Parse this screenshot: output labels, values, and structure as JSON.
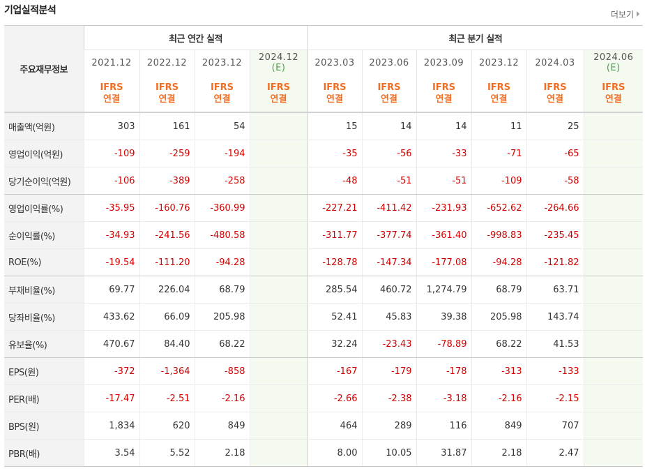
{
  "section_title": "기업실적분석",
  "more_label": "더보기",
  "table": {
    "label_header": "주요재무정보",
    "annual_group": "최근 연간 실적",
    "quarter_group": "최근 분기 실적",
    "periods": [
      {
        "date": "2021.12",
        "est": ""
      },
      {
        "date": "2022.12",
        "est": ""
      },
      {
        "date": "2023.12",
        "est": ""
      },
      {
        "date": "2024.12",
        "est": "(E)"
      },
      {
        "date": "2023.03",
        "est": ""
      },
      {
        "date": "2023.06",
        "est": ""
      },
      {
        "date": "2023.09",
        "est": ""
      },
      {
        "date": "2023.12",
        "est": ""
      },
      {
        "date": "2024.03",
        "est": ""
      },
      {
        "date": "2024.06",
        "est": "(E)"
      }
    ],
    "ifrs_label": "IFRS",
    "consol_label": "연결",
    "rows": [
      {
        "label": "매출액(억원)",
        "values": [
          "303",
          "161",
          "54",
          "",
          "15",
          "14",
          "14",
          "11",
          "25",
          ""
        ]
      },
      {
        "label": "영업이익(억원)",
        "values": [
          "-109",
          "-259",
          "-194",
          "",
          "-35",
          "-56",
          "-33",
          "-71",
          "-65",
          ""
        ]
      },
      {
        "label": "당기순이익(억원)",
        "values": [
          "-106",
          "-389",
          "-258",
          "",
          "-48",
          "-51",
          "-51",
          "-109",
          "-58",
          ""
        ]
      },
      {
        "label": "영업이익률(%)",
        "values": [
          "-35.95",
          "-160.76",
          "-360.99",
          "",
          "-227.21",
          "-411.42",
          "-231.93",
          "-652.62",
          "-264.66",
          ""
        ]
      },
      {
        "label": "순이익률(%)",
        "values": [
          "-34.93",
          "-241.56",
          "-480.58",
          "",
          "-311.77",
          "-377.74",
          "-361.40",
          "-998.83",
          "-235.45",
          ""
        ]
      },
      {
        "label": "ROE(%)",
        "values": [
          "-19.54",
          "-111.20",
          "-94.28",
          "",
          "-128.78",
          "-147.34",
          "-177.08",
          "-94.28",
          "-121.82",
          ""
        ]
      },
      {
        "label": "부채비율(%)",
        "values": [
          "69.77",
          "226.04",
          "68.79",
          "",
          "285.54",
          "460.72",
          "1,274.79",
          "68.79",
          "63.71",
          ""
        ]
      },
      {
        "label": "당좌비율(%)",
        "values": [
          "433.62",
          "66.09",
          "205.98",
          "",
          "52.41",
          "45.83",
          "39.38",
          "205.98",
          "143.74",
          ""
        ]
      },
      {
        "label": "유보율(%)",
        "values": [
          "470.67",
          "84.40",
          "68.22",
          "",
          "32.24",
          "-23.43",
          "-78.89",
          "68.22",
          "41.53",
          ""
        ]
      },
      {
        "label": "EPS(원)",
        "values": [
          "-372",
          "-1,364",
          "-858",
          "",
          "-167",
          "-179",
          "-178",
          "-313",
          "-133",
          ""
        ]
      },
      {
        "label": "PER(배)",
        "values": [
          "-17.47",
          "-2.51",
          "-2.16",
          "",
          "-2.66",
          "-2.38",
          "-3.18",
          "-2.16",
          "-2.15",
          ""
        ]
      },
      {
        "label": "BPS(원)",
        "values": [
          "1,834",
          "620",
          "849",
          "",
          "464",
          "289",
          "116",
          "849",
          "707",
          ""
        ]
      },
      {
        "label": "PBR(배)",
        "values": [
          "3.54",
          "5.52",
          "2.18",
          "",
          "8.00",
          "10.05",
          "31.87",
          "2.18",
          "2.47",
          ""
        ]
      }
    ]
  },
  "colors": {
    "negative": "#d40000",
    "ifrs": "#f26d21",
    "estimate": "#4a9a4a",
    "estimate_bg": "#f4faf0",
    "label_bg": "#f3f3f3"
  }
}
